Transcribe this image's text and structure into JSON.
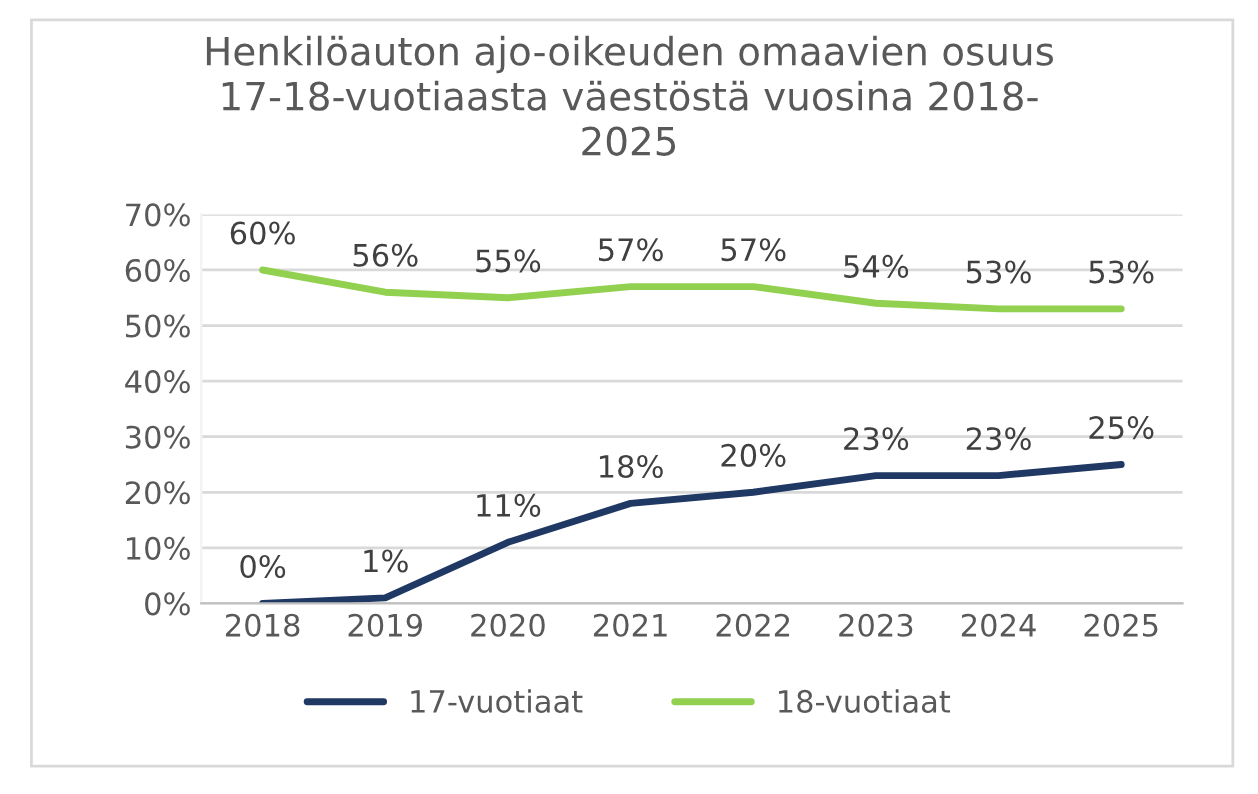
{
  "chart_data": {
    "type": "line",
    "title": "Henkilöauton ajo-oikeuden omaavien osuus\n17-18-vuotiaasta väestöstä vuosina 2018-\n2025",
    "categories": [
      "2018",
      "2019",
      "2020",
      "2021",
      "2022",
      "2023",
      "2024",
      "2025"
    ],
    "series": [
      {
        "name": "17-vuotiaat",
        "color": "#1f3864",
        "values": [
          0,
          1,
          11,
          18,
          20,
          23,
          23,
          25
        ],
        "value_labels": [
          "0%",
          "1%",
          "11%",
          "18%",
          "20%",
          "23%",
          "23%",
          "25%"
        ]
      },
      {
        "name": "18-vuotiaat",
        "color": "#92d050",
        "values": [
          60,
          56,
          55,
          57,
          57,
          54,
          53,
          53
        ],
        "value_labels": [
          "60%",
          "56%",
          "55%",
          "57%",
          "57%",
          "54%",
          "53%",
          "53%"
        ]
      }
    ],
    "ylim": [
      0,
      70
    ],
    "yticks": [
      {
        "value": 0,
        "label": "0%"
      },
      {
        "value": 10,
        "label": "10%"
      },
      {
        "value": 20,
        "label": "20%"
      },
      {
        "value": 30,
        "label": "30%"
      },
      {
        "value": 40,
        "label": "40%"
      },
      {
        "value": 50,
        "label": "50%"
      },
      {
        "value": 60,
        "label": "60%"
      },
      {
        "value": 70,
        "label": "70%"
      }
    ],
    "grid": "y",
    "legend": "bottom",
    "marker": "none",
    "line_style": "solid"
  }
}
